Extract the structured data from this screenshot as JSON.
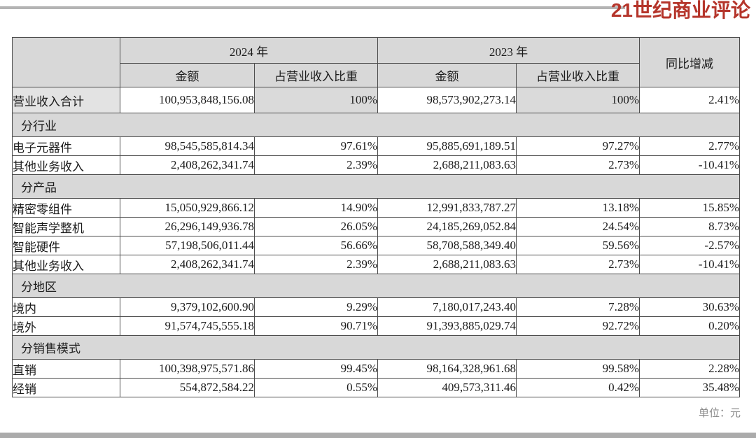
{
  "page": {
    "logo_text": "21世纪商业评论",
    "unit_note": "单位：元",
    "colors": {
      "logo_red": "#b5352b",
      "header_gray": "#d8d8d8",
      "rule_gray": "#b4b4b4",
      "border_gray": "#4d4d4d"
    }
  },
  "table": {
    "headers": {
      "year_2024": "2024 年",
      "year_2023": "2023 年",
      "amount": "金额",
      "share": "占营业收入比重",
      "yoy": "同比增减"
    },
    "rows": [
      {
        "type": "total",
        "label": "营业收入合计",
        "a2024": "100,953,848,156.08",
        "p2024": "100%",
        "a2023": "98,573,902,273.14",
        "p2023": "100%",
        "yoy": "2.41%"
      },
      {
        "type": "section",
        "label": "分行业"
      },
      {
        "type": "data",
        "label": "电子元器件",
        "a2024": "98,545,585,814.34",
        "p2024": "97.61%",
        "a2023": "95,885,691,189.51",
        "p2023": "97.27%",
        "yoy": "2.77%"
      },
      {
        "type": "data",
        "label": "其他业务收入",
        "a2024": "2,408,262,341.74",
        "p2024": "2.39%",
        "a2023": "2,688,211,083.63",
        "p2023": "2.73%",
        "yoy": "-10.41%"
      },
      {
        "type": "section",
        "label": "分产品"
      },
      {
        "type": "data",
        "label": "精密零组件",
        "a2024": "15,050,929,866.12",
        "p2024": "14.90%",
        "a2023": "12,991,833,787.27",
        "p2023": "13.18%",
        "yoy": "15.85%"
      },
      {
        "type": "data",
        "label": "智能声学整机",
        "a2024": "26,296,149,936.78",
        "p2024": "26.05%",
        "a2023": "24,185,269,052.84",
        "p2023": "24.54%",
        "yoy": "8.73%"
      },
      {
        "type": "data",
        "label": "智能硬件",
        "a2024": "57,198,506,011.44",
        "p2024": "56.66%",
        "a2023": "58,708,588,349.40",
        "p2023": "59.56%",
        "yoy": "-2.57%"
      },
      {
        "type": "data",
        "label": "其他业务收入",
        "a2024": "2,408,262,341.74",
        "p2024": "2.39%",
        "a2023": "2,688,211,083.63",
        "p2023": "2.73%",
        "yoy": "-10.41%"
      },
      {
        "type": "section",
        "label": "分地区"
      },
      {
        "type": "data",
        "label": "境内",
        "a2024": "9,379,102,600.90",
        "p2024": "9.29%",
        "a2023": "7,180,017,243.40",
        "p2023": "7.28%",
        "yoy": "30.63%"
      },
      {
        "type": "data",
        "label": "境外",
        "a2024": "91,574,745,555.18",
        "p2024": "90.71%",
        "a2023": "91,393,885,029.74",
        "p2023": "92.72%",
        "yoy": "0.20%"
      },
      {
        "type": "section",
        "label": "分销售模式"
      },
      {
        "type": "data",
        "label": "直销",
        "a2024": "100,398,975,571.86",
        "p2024": "99.45%",
        "a2023": "98,164,328,961.68",
        "p2023": "99.58%",
        "yoy": "2.28%"
      },
      {
        "type": "data",
        "label": "经销",
        "a2024": "554,872,584.22",
        "p2024": "0.55%",
        "a2023": "409,573,311.46",
        "p2023": "0.42%",
        "yoy": "35.48%"
      }
    ]
  }
}
